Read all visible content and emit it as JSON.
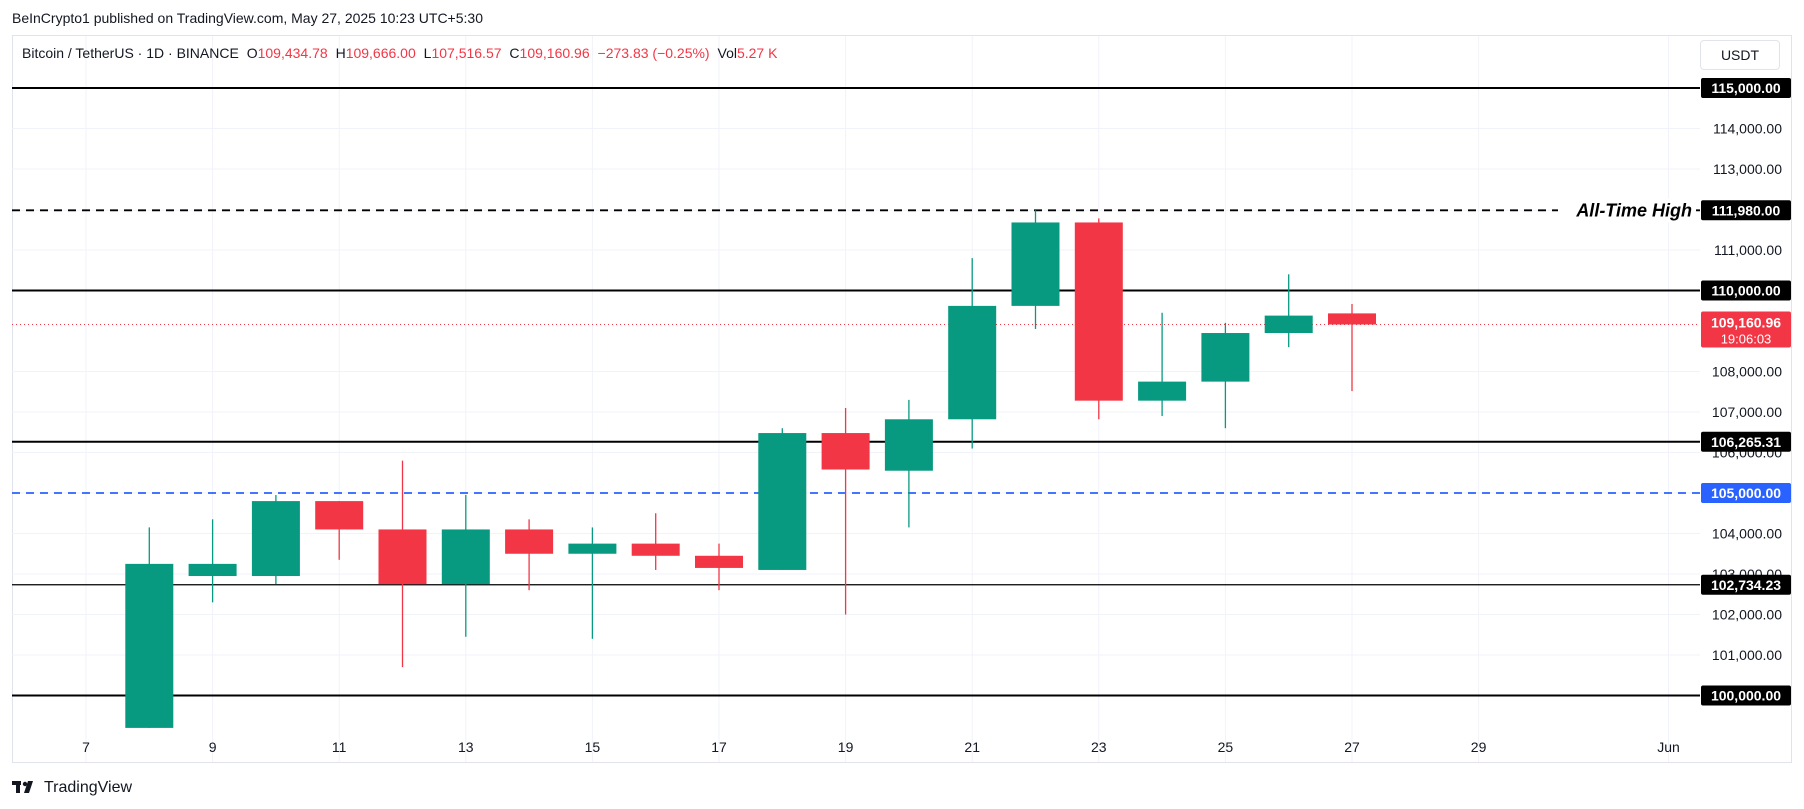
{
  "header": {
    "publisher": "BeInCrypto1 published on TradingView.com, May 27, 2025 10:23 UTC+5:30"
  },
  "legend": {
    "symbol": "Bitcoin / TetherUS · 1D · BINANCE",
    "o_label": "O",
    "o_value": "109,434.78",
    "h_label": "H",
    "h_value": "109,666.00",
    "l_label": "L",
    "l_value": "107,516.57",
    "c_label": "C",
    "c_value": "109,160.96",
    "change": "−273.83 (−0.25%)",
    "vol_label": "Vol",
    "vol_value": "5.27 K"
  },
  "currency": "USDT",
  "footer": {
    "brand": "TradingView"
  },
  "colors": {
    "up": "#089981",
    "down": "#f23645",
    "blue": "#2962ff",
    "black": "#000000",
    "grid": "#f0f3fa",
    "axis_text": "#131722"
  },
  "chart_data": {
    "type": "candlestick",
    "ylim": [
      99000,
      116000
    ],
    "x_ticks": [
      {
        "day": 7,
        "label": "7"
      },
      {
        "day": 9,
        "label": "9"
      },
      {
        "day": 11,
        "label": "11"
      },
      {
        "day": 13,
        "label": "13"
      },
      {
        "day": 15,
        "label": "15"
      },
      {
        "day": 17,
        "label": "17"
      },
      {
        "day": 19,
        "label": "19"
      },
      {
        "day": 21,
        "label": "21"
      },
      {
        "day": 23,
        "label": "23"
      },
      {
        "day": 25,
        "label": "25"
      },
      {
        "day": 27,
        "label": "27"
      },
      {
        "day": 29,
        "label": "29"
      },
      {
        "day": 32,
        "label": "Jun"
      }
    ],
    "y_ticks": [
      {
        "value": 114000,
        "label": "114,000.00"
      },
      {
        "value": 113000,
        "label": "113,000.00"
      },
      {
        "value": 111000,
        "label": "111,000.00"
      },
      {
        "value": 108000,
        "label": "108,000.00"
      },
      {
        "value": 107000,
        "label": "107,000.00"
      },
      {
        "value": 106000,
        "label": "106,000.00"
      },
      {
        "value": 104000,
        "label": "104,000.00"
      },
      {
        "value": 103000,
        "label": "103,000.00"
      },
      {
        "value": 102000,
        "label": "102,000.00"
      },
      {
        "value": 101000,
        "label": "101,000.00"
      }
    ],
    "candles": [
      {
        "day": 8,
        "o": 99200,
        "h": 104150,
        "l": 99200,
        "c": 103250
      },
      {
        "day": 9,
        "o": 102950,
        "h": 104350,
        "l": 102300,
        "c": 103250
      },
      {
        "day": 10,
        "o": 102950,
        "h": 104950,
        "l": 102750,
        "c": 104800
      },
      {
        "day": 11,
        "o": 104800,
        "h": 104800,
        "l": 103350,
        "c": 104100
      },
      {
        "day": 12,
        "o": 104100,
        "h": 105800,
        "l": 100700,
        "c": 102750
      },
      {
        "day": 13,
        "o": 102750,
        "h": 104950,
        "l": 101450,
        "c": 104100
      },
      {
        "day": 14,
        "o": 104100,
        "h": 104350,
        "l": 102600,
        "c": 103500
      },
      {
        "day": 15,
        "o": 103500,
        "h": 104150,
        "l": 101400,
        "c": 103750
      },
      {
        "day": 16,
        "o": 103750,
        "h": 104500,
        "l": 103100,
        "c": 103450
      },
      {
        "day": 17,
        "o": 103450,
        "h": 103750,
        "l": 102600,
        "c": 103150
      },
      {
        "day": 18,
        "o": 103100,
        "h": 106600,
        "l": 103100,
        "c": 106480
      },
      {
        "day": 19,
        "o": 106480,
        "h": 107100,
        "l": 102000,
        "c": 105580
      },
      {
        "day": 20,
        "o": 105550,
        "h": 107300,
        "l": 104150,
        "c": 106820
      },
      {
        "day": 21,
        "o": 106820,
        "h": 110800,
        "l": 106100,
        "c": 109620
      },
      {
        "day": 22,
        "o": 109620,
        "h": 111980,
        "l": 109050,
        "c": 111680
      },
      {
        "day": 23,
        "o": 111680,
        "h": 111780,
        "l": 106820,
        "c": 107280
      },
      {
        "day": 24,
        "o": 107280,
        "h": 109450,
        "l": 106900,
        "c": 107750
      },
      {
        "day": 25,
        "o": 107750,
        "h": 109200,
        "l": 106600,
        "c": 108950
      },
      {
        "day": 26,
        "o": 108950,
        "h": 110400,
        "l": 108600,
        "c": 109380
      },
      {
        "day": 27,
        "o": 109434.78,
        "h": 109666,
        "l": 107516.57,
        "c": 109160.96
      }
    ],
    "levels": [
      {
        "value": 115000,
        "label": "115,000.00",
        "style": "solid",
        "color": "black"
      },
      {
        "value": 111980,
        "label": "111,980.00",
        "style": "dashed",
        "color": "black",
        "annotation": "All-Time High"
      },
      {
        "value": 110000,
        "label": "110,000.00",
        "style": "solid",
        "color": "black"
      },
      {
        "value": 106265.31,
        "label": "106,265.31",
        "style": "solid",
        "color": "black"
      },
      {
        "value": 105000,
        "label": "105,000.00",
        "style": "dashed",
        "color": "blue"
      },
      {
        "value": 102734.23,
        "label": "102,734.23",
        "style": "solid-thin",
        "color": "black"
      },
      {
        "value": 100000,
        "label": "100,000.00",
        "style": "solid",
        "color": "black"
      }
    ],
    "last_price": {
      "value": 109160.96,
      "label": "109,160.96",
      "countdown": "19:06:03"
    }
  }
}
